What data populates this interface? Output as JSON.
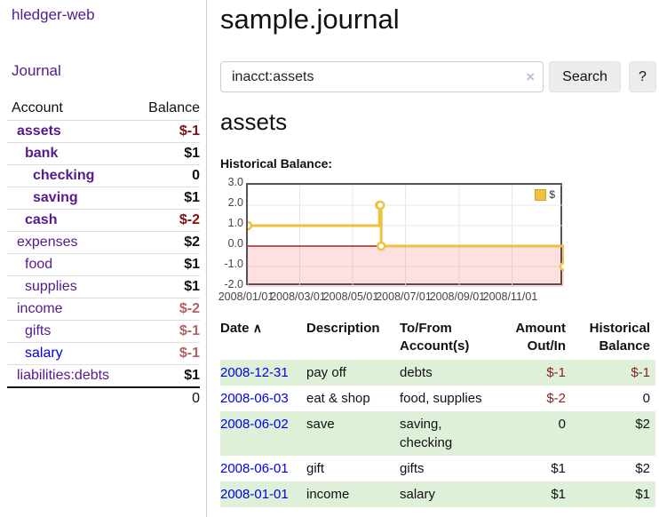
{
  "sidebar": {
    "brand": "hledger-web",
    "nav": {
      "journal_label": "Journal"
    },
    "accounts_table": {
      "headers": {
        "account": "Account",
        "balance": "Balance"
      },
      "rows": [
        {
          "name": "assets",
          "balance": "$-1",
          "level": 1,
          "bold": true,
          "negative": true
        },
        {
          "name": "bank",
          "balance": "$1",
          "level": 2,
          "bold": true,
          "negative": false
        },
        {
          "name": "checking",
          "balance": "0",
          "level": 3,
          "bold": true,
          "negative": false
        },
        {
          "name": "saving",
          "balance": "$1",
          "level": 3,
          "bold": true,
          "negative": false
        },
        {
          "name": "cash",
          "balance": "$-2",
          "level": 2,
          "bold": true,
          "negative": true
        },
        {
          "name": "expenses",
          "balance": "$2",
          "level": 1,
          "bold": false,
          "negative": false
        },
        {
          "name": "food",
          "balance": "$1",
          "level": 2,
          "bold": false,
          "negative": false
        },
        {
          "name": "supplies",
          "balance": "$1",
          "level": 2,
          "bold": false,
          "negative": false
        },
        {
          "name": "income",
          "balance": "$-2",
          "level": 1,
          "bold": false,
          "negative": true
        },
        {
          "name": "gifts",
          "balance": "$-1",
          "level": 2,
          "bold": false,
          "negative": true
        },
        {
          "name": "salary",
          "balance": "$-1",
          "level": 2,
          "bold": false,
          "negative": true,
          "blue_link": true
        },
        {
          "name": "liabilities:debts",
          "balance": "$1",
          "level": 1,
          "bold": false,
          "negative": false
        }
      ],
      "total": "0"
    }
  },
  "header": {
    "title": "sample.journal"
  },
  "search": {
    "query": "inacct:assets",
    "clear_icon": "×",
    "search_label": "Search",
    "help_label": "?"
  },
  "account_page": {
    "title": "assets",
    "chart_label": "Historical Balance:"
  },
  "chart_data": {
    "type": "line",
    "step": true,
    "title": "Historical Balance",
    "series": [
      {
        "name": "$",
        "color": "#edc240",
        "points": [
          [
            "2008-01-01",
            1
          ],
          [
            "2008-06-01",
            2
          ],
          [
            "2008-06-02",
            2
          ],
          [
            "2008-06-03",
            0
          ],
          [
            "2008-12-31",
            -1
          ]
        ]
      }
    ],
    "x_range": [
      "2008-01-01",
      "2008-12-31"
    ],
    "y_range": [
      -2.0,
      3.0
    ],
    "x_ticks": [
      "2008/01/01",
      "2008/03/01",
      "2008/05/01",
      "2008/07/01",
      "2008/09/01",
      "2008/11/01"
    ],
    "y_ticks": [
      3.0,
      2.0,
      1.0,
      0.0,
      -1.0,
      -2.0
    ],
    "grid": true,
    "legend_position": "top-right",
    "negative_region_color": "rgba(255,0,0,0.12)",
    "zero_line_color": "#8b0000",
    "gridline_color": "#e8e8e8"
  },
  "register_table": {
    "headers": {
      "date": "Date",
      "sort_icon": "∧",
      "description": "Description",
      "accounts": "To/From Account(s)",
      "amount": "Amount Out/In",
      "balance": "Historical Balance"
    },
    "rows": [
      {
        "date": "2008-12-31",
        "description": "pay off",
        "accounts": "debts",
        "amount": "$-1",
        "balance": "$-1"
      },
      {
        "date": "2008-06-03",
        "description": "eat & shop",
        "accounts": "food, supplies",
        "amount": "$-2",
        "balance": "0"
      },
      {
        "date": "2008-06-02",
        "description": "save",
        "accounts": "saving, checking",
        "amount": "0",
        "balance": "$2"
      },
      {
        "date": "2008-06-01",
        "description": "gift",
        "accounts": "gifts",
        "amount": "$1",
        "balance": "$2"
      },
      {
        "date": "2008-01-01",
        "description": "income",
        "accounts": "salary",
        "amount": "$1",
        "balance": "$1"
      }
    ]
  },
  "colors": {
    "link_purple": "#551a8b",
    "link_blue": "#0000e6",
    "negative_strong": "#7f1212",
    "negative_soft": "#b26262",
    "row_stripe_green": "#dff0d8",
    "chart_line_gold": "#edc240",
    "button_gray": "#ececec"
  }
}
